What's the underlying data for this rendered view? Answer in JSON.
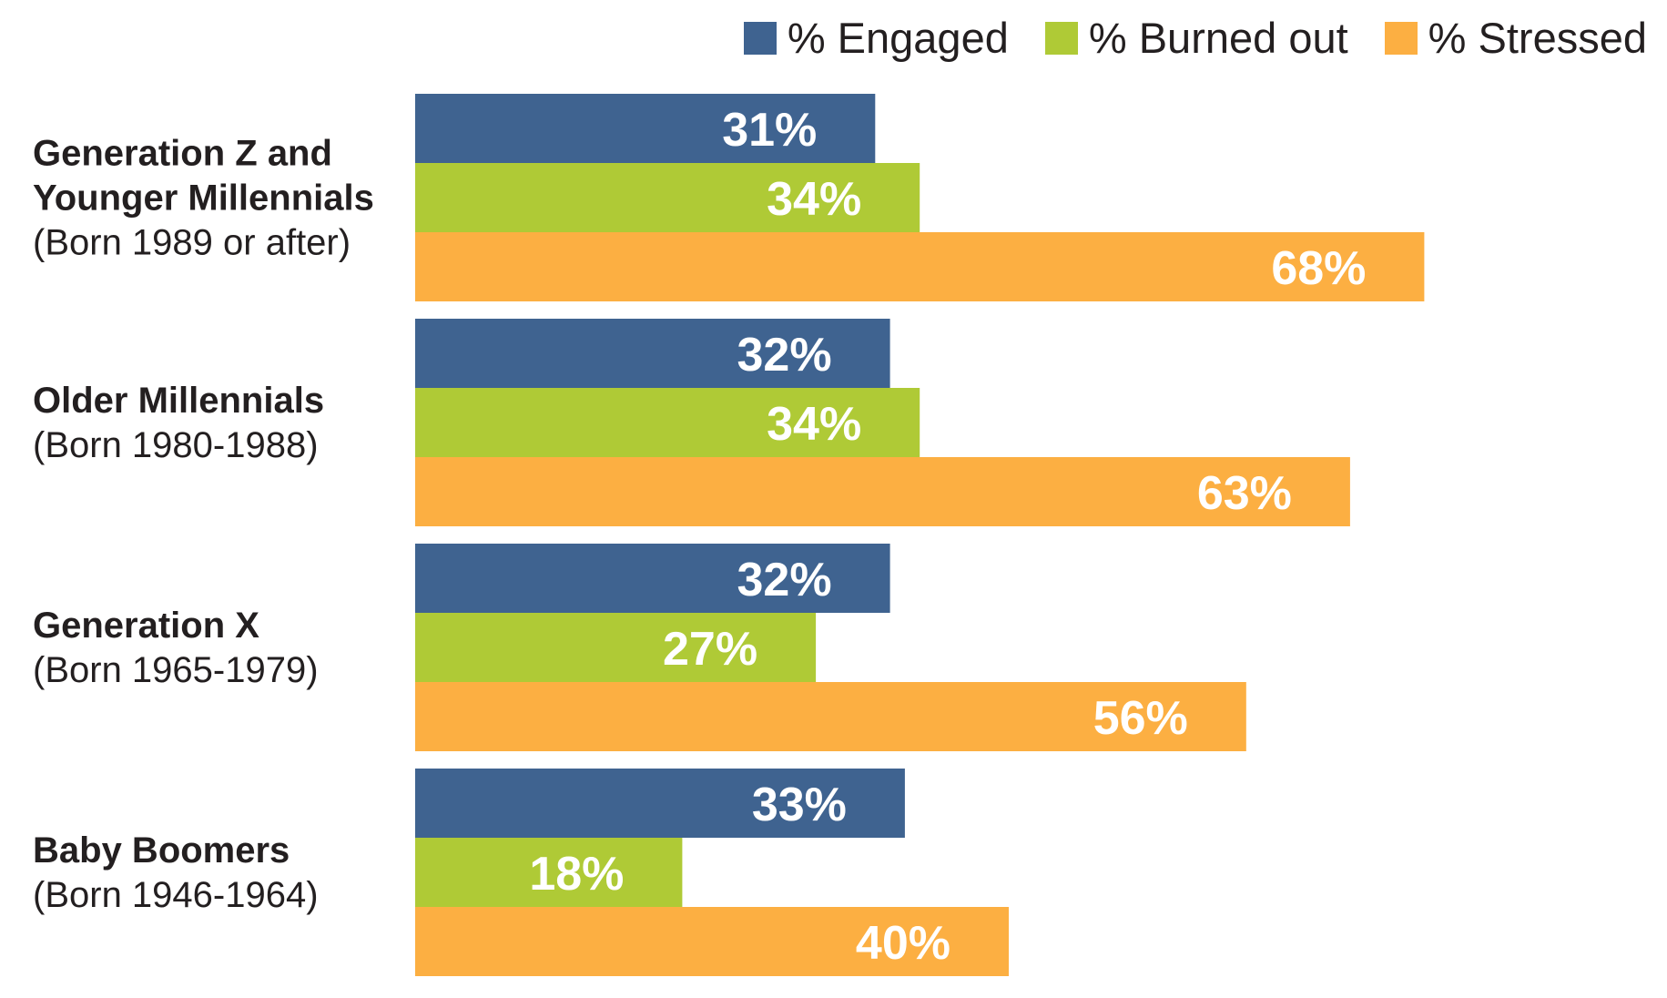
{
  "chart_data": {
    "type": "bar",
    "orientation": "horizontal",
    "categories": [
      {
        "name_lines": [
          "Generation Z and",
          "Younger Millennials"
        ],
        "sub": "(Born 1989 or after)"
      },
      {
        "name_lines": [
          "Older Millennials"
        ],
        "sub": "(Born 1980-1988)"
      },
      {
        "name_lines": [
          "Generation X"
        ],
        "sub": "(Born 1965-1979)"
      },
      {
        "name_lines": [
          "Baby Boomers"
        ],
        "sub": "(Born 1946-1964)"
      }
    ],
    "series": [
      {
        "name": "% Engaged",
        "color": "#3f6390",
        "values": [
          31,
          32,
          32,
          33
        ],
        "labels": [
          "31%",
          "32%",
          "32%",
          "33%"
        ]
      },
      {
        "name": "% Burned out",
        "color": "#afca36",
        "values": [
          34,
          34,
          27,
          18
        ],
        "labels": [
          "34%",
          "34%",
          "27%",
          "18%"
        ]
      },
      {
        "name": "% Stressed",
        "color": "#fcaf42",
        "values": [
          68,
          63,
          56,
          40
        ],
        "labels": [
          "68%",
          "63%",
          "56%",
          "40%"
        ]
      }
    ],
    "xlim": [
      0,
      100
    ],
    "grid": false,
    "legend": "top-right",
    "title": "",
    "xlabel": "",
    "ylabel": ""
  }
}
